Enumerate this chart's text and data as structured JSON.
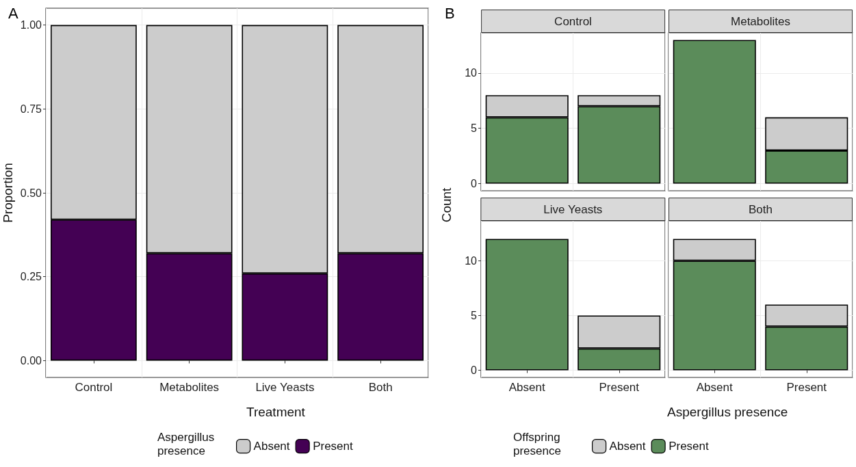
{
  "chart_data": [
    {
      "type": "bar",
      "stacked": true,
      "categories": [
        "Control",
        "Metabolites",
        "Live Yeasts",
        "Both"
      ],
      "xlabel": "Treatment",
      "ylabel": "Proportion",
      "legend_title": "Aspergillus presence",
      "legend": "bottom",
      "grid": true,
      "annotations": [
        "A"
      ],
      "ylim": [
        -0.05,
        1.05
      ],
      "yticks": [
        {
          "value": 0,
          "label": "0.00"
        },
        {
          "value": 0.25,
          "label": "0.25"
        },
        {
          "value": 0.5,
          "label": "0.50"
        },
        {
          "value": 0.75,
          "label": "0.75"
        },
        {
          "value": 1,
          "label": "1.00"
        }
      ],
      "series": [
        {
          "name": "Present",
          "color": "#440154",
          "values": [
            0.42,
            0.32,
            0.26,
            0.32
          ]
        },
        {
          "name": "Absent",
          "color": "#cccccc",
          "values": [
            0.58,
            0.68,
            0.74,
            0.68
          ]
        }
      ]
    },
    {
      "type": "bar",
      "stacked": true,
      "title": "Control",
      "categories": [
        "Absent",
        "Present"
      ],
      "xlabel": "Aspergillus presence",
      "ylabel": "Count",
      "legend_title": "Offspring presence",
      "legend": "bottom",
      "grid": true,
      "annotations": [
        "B"
      ],
      "tick_labels": "y",
      "ylim": [
        -0.65,
        13.65
      ],
      "yticks": [
        0,
        5,
        10
      ],
      "series": [
        {
          "name": "Present",
          "color": "#5b8c5a",
          "values": [
            6,
            7
          ]
        },
        {
          "name": "Absent",
          "color": "#cccccc",
          "values": [
            2,
            1
          ]
        }
      ]
    },
    {
      "type": "bar",
      "stacked": true,
      "title": "Metabolites",
      "categories": [
        "Absent",
        "Present"
      ],
      "grid": true,
      "tick_labels": false,
      "ylim": [
        -0.65,
        13.65
      ],
      "yticks": [
        0,
        5,
        10
      ],
      "series": [
        {
          "color": "#5b8c5a",
          "values": [
            13,
            3
          ]
        },
        {
          "color": "#cccccc",
          "values": [
            null,
            3
          ]
        }
      ]
    },
    {
      "type": "bar",
      "stacked": true,
      "title": "Live Yeasts",
      "categories": [
        "Absent",
        "Present"
      ],
      "grid": true,
      "ylim": [
        -0.65,
        13.65
      ],
      "yticks": [
        0,
        5,
        10
      ],
      "series": [
        {
          "color": "#5b8c5a",
          "values": [
            12,
            2
          ]
        },
        {
          "color": "#cccccc",
          "values": [
            null,
            3
          ]
        }
      ]
    },
    {
      "type": "bar",
      "stacked": true,
      "title": "Both",
      "categories": [
        "Absent",
        "Present"
      ],
      "grid": true,
      "tick_labels": "x",
      "ylim": [
        -0.65,
        13.65
      ],
      "yticks": [
        0,
        5,
        10
      ],
      "series": [
        {
          "color": "#5b8c5a",
          "values": [
            10,
            4
          ]
        },
        {
          "color": "#cccccc",
          "values": [
            2,
            2
          ]
        }
      ]
    }
  ]
}
